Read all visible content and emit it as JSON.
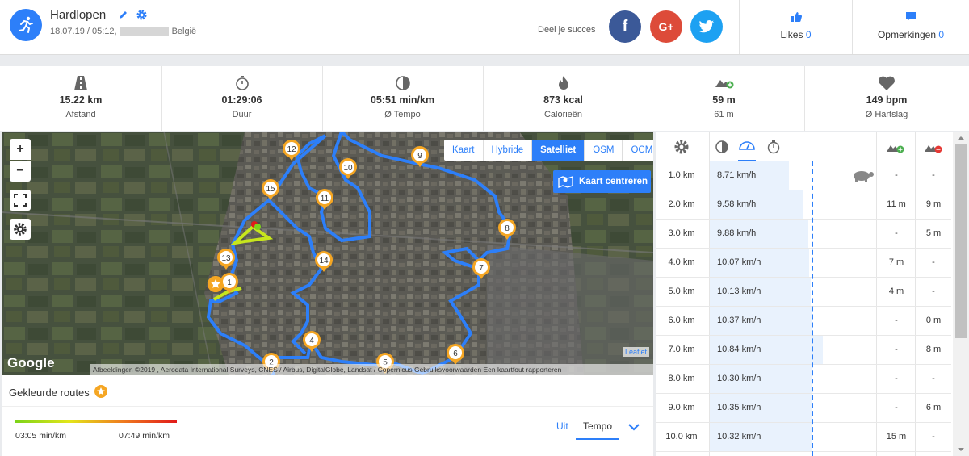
{
  "header": {
    "title": "Hardlopen",
    "date": "18.07.19 / 05:12,",
    "location": "België",
    "share_label": "Deel je succes",
    "likes_label": "Likes",
    "likes_count": "0",
    "comments_label": "Opmerkingen",
    "comments_count": "0"
  },
  "stats": [
    {
      "value": "15.22 km",
      "label": "Afstand",
      "icon": "road-icon"
    },
    {
      "value": "01:29:06",
      "label": "Duur",
      "icon": "stopwatch-icon"
    },
    {
      "value": "05:51 min/km",
      "label": "Ø Tempo",
      "icon": "pace-icon"
    },
    {
      "value": "873 kcal",
      "label": "Calorieën",
      "icon": "flame-icon"
    },
    {
      "value": "59 m",
      "label": "61 m",
      "icon": "elevation-icon"
    },
    {
      "value": "149 bpm",
      "label": "Ø Hartslag",
      "icon": "heart-icon"
    }
  ],
  "map": {
    "layers": [
      "Kaart",
      "Hybride",
      "Satelliet",
      "OSM",
      "OCM"
    ],
    "active_layer": "Satelliet",
    "center_button": "Kaart centreren",
    "attribution": "Afbeeldingen ©2019 , Aerodata International Surveys, CNES / Airbus, DigitalGlobe, Landsat / Copernicus   Gebruiksvoorwaarden   Een kaartfout rapporteren",
    "leaflet": "Leaflet",
    "google": "Google",
    "markers": [
      "1",
      "2",
      "4",
      "5",
      "6",
      "7",
      "8",
      "9",
      "10",
      "11",
      "12",
      "13",
      "14",
      "15"
    ]
  },
  "colored_routes": {
    "title": "Gekleurde routes",
    "min_label": "03:05 min/km",
    "max_label": "07:49 min/km",
    "off_label": "Uit",
    "tempo_label": "Tempo"
  },
  "splits": [
    {
      "km": "1.0 km",
      "speed": "8.71 km/h",
      "up": "-",
      "down": "-",
      "fraction": 0.7
    },
    {
      "km": "2.0 km",
      "speed": "9.58 km/h",
      "up": "11 m",
      "down": "9 m",
      "fraction": 0.83
    },
    {
      "km": "3.0 km",
      "speed": "9.88 km/h",
      "up": "-",
      "down": "5 m",
      "fraction": 0.87
    },
    {
      "km": "4.0 km",
      "speed": "10.07 km/h",
      "up": "7 m",
      "down": "-",
      "fraction": 0.88
    },
    {
      "km": "5.0 km",
      "speed": "10.13 km/h",
      "up": "4 m",
      "down": "-",
      "fraction": 0.89
    },
    {
      "km": "6.0 km",
      "speed": "10.37 km/h",
      "up": "-",
      "down": "0 m",
      "fraction": 0.9
    },
    {
      "km": "7.0 km",
      "speed": "10.84 km/h",
      "up": "-",
      "down": "8 m",
      "fraction": 1.0
    },
    {
      "km": "8.0 km",
      "speed": "10.30 km/h",
      "up": "-",
      "down": "-",
      "fraction": 0.9
    },
    {
      "km": "9.0 km",
      "speed": "10.35 km/h",
      "up": "-",
      "down": "6 m",
      "fraction": 0.9
    },
    {
      "km": "10.0 km",
      "speed": "10.32 km/h",
      "up": "15 m",
      "down": "-",
      "fraction": 0.9
    }
  ]
}
